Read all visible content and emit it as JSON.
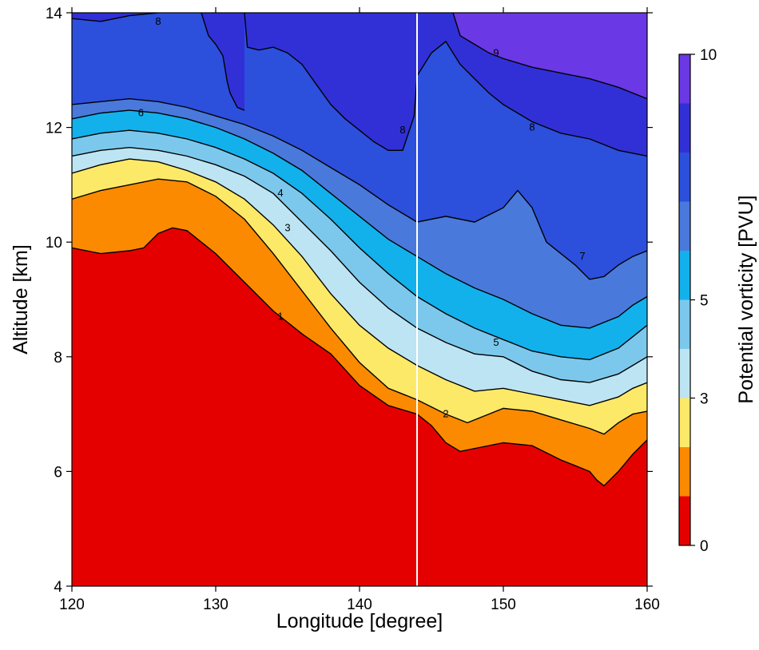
{
  "chart_data": {
    "type": "heatmap",
    "subtype": "filled-contour",
    "xlabel": "Longitude [degree]",
    "ylabel": "Altitude [km]",
    "xlim": [
      120,
      160
    ],
    "ylim": [
      4,
      14
    ],
    "xticks": [
      "120",
      "130",
      "140",
      "150",
      "160"
    ],
    "yticks": [
      "4",
      "6",
      "8",
      "10",
      "12",
      "14"
    ],
    "marker_line_x": 144,
    "colorbar": {
      "label": "Potential vorticity [PVU]",
      "ticks": [
        "0",
        "3",
        "5",
        "10"
      ],
      "tick_values": [
        0,
        3,
        5,
        10
      ],
      "range": [
        0,
        10
      ]
    },
    "levels": [
      {
        "range": [
          0,
          1
        ],
        "color": "#e50000"
      },
      {
        "range": [
          1,
          2
        ],
        "color": "#fb8a00"
      },
      {
        "range": [
          2,
          3
        ],
        "color": "#fde968"
      },
      {
        "range": [
          3,
          4
        ],
        "color": "#bde4f2"
      },
      {
        "range": [
          4,
          5
        ],
        "color": "#7cc8ec"
      },
      {
        "range": [
          5,
          6
        ],
        "color": "#12b1ec"
      },
      {
        "range": [
          6,
          7
        ],
        "color": "#4a79dc"
      },
      {
        "range": [
          7,
          8
        ],
        "color": "#2c4fdc"
      },
      {
        "range": [
          8,
          9
        ],
        "color": "#3130d6"
      },
      {
        "range": [
          9,
          10
        ],
        "color": "#6a38e4"
      }
    ],
    "contours": [
      {
        "level": 1,
        "label": "1",
        "points": [
          [
            120,
            9.9
          ],
          [
            122,
            9.8
          ],
          [
            124,
            9.85
          ],
          [
            125,
            9.9
          ],
          [
            126,
            10.15
          ],
          [
            127,
            10.25
          ],
          [
            128,
            10.2
          ],
          [
            130,
            9.8
          ],
          [
            132,
            9.3
          ],
          [
            134,
            8.8
          ],
          [
            136,
            8.4
          ],
          [
            138,
            8.05
          ],
          [
            140,
            7.5
          ],
          [
            142,
            7.15
          ],
          [
            144,
            7.0
          ],
          [
            145,
            6.8
          ],
          [
            146,
            6.5
          ],
          [
            147,
            6.35
          ],
          [
            150,
            6.5
          ],
          [
            152,
            6.45
          ],
          [
            154,
            6.2
          ],
          [
            155,
            6.1
          ],
          [
            156,
            6.0
          ],
          [
            156.5,
            5.85
          ],
          [
            157,
            5.75
          ],
          [
            158,
            6.0
          ],
          [
            159,
            6.3
          ],
          [
            160,
            6.55
          ]
        ],
        "label_at": [
          134.5,
          8.7
        ]
      },
      {
        "level": 2,
        "label": "2",
        "points": [
          [
            120,
            10.75
          ],
          [
            122,
            10.9
          ],
          [
            124,
            11.0
          ],
          [
            126,
            11.1
          ],
          [
            128,
            11.05
          ],
          [
            130,
            10.8
          ],
          [
            132,
            10.4
          ],
          [
            134,
            9.8
          ],
          [
            136,
            9.15
          ],
          [
            138,
            8.5
          ],
          [
            140,
            7.9
          ],
          [
            142,
            7.45
          ],
          [
            144,
            7.25
          ],
          [
            146,
            7.0
          ],
          [
            147.5,
            6.85
          ],
          [
            150,
            7.1
          ],
          [
            152,
            7.05
          ],
          [
            154,
            6.9
          ],
          [
            156,
            6.75
          ],
          [
            157,
            6.65
          ],
          [
            158,
            6.85
          ],
          [
            159,
            7.0
          ],
          [
            160,
            7.05
          ]
        ],
        "label_at": [
          146,
          7.0
        ]
      },
      {
        "level": 3,
        "label": "3",
        "points": [
          [
            120,
            11.2
          ],
          [
            122,
            11.35
          ],
          [
            124,
            11.45
          ],
          [
            126,
            11.4
          ],
          [
            128,
            11.25
          ],
          [
            130,
            11.05
          ],
          [
            132,
            10.75
          ],
          [
            134,
            10.3
          ],
          [
            136,
            9.75
          ],
          [
            138,
            9.1
          ],
          [
            140,
            8.55
          ],
          [
            142,
            8.15
          ],
          [
            144,
            7.85
          ],
          [
            146,
            7.6
          ],
          [
            148,
            7.4
          ],
          [
            150,
            7.45
          ],
          [
            152,
            7.35
          ],
          [
            154,
            7.25
          ],
          [
            156,
            7.15
          ],
          [
            158,
            7.3
          ],
          [
            159,
            7.45
          ],
          [
            160,
            7.55
          ]
        ],
        "label_at": [
          135,
          10.25
        ]
      },
      {
        "level": 4,
        "label": "4",
        "points": [
          [
            120,
            11.5
          ],
          [
            122,
            11.6
          ],
          [
            124,
            11.65
          ],
          [
            126,
            11.6
          ],
          [
            128,
            11.5
          ],
          [
            130,
            11.35
          ],
          [
            132,
            11.15
          ],
          [
            134,
            10.85
          ],
          [
            136,
            10.35
          ],
          [
            138,
            9.85
          ],
          [
            140,
            9.3
          ],
          [
            142,
            8.85
          ],
          [
            144,
            8.5
          ],
          [
            146,
            8.25
          ],
          [
            148,
            8.05
          ],
          [
            150,
            8.0
          ],
          [
            152,
            7.75
          ],
          [
            154,
            7.6
          ],
          [
            156,
            7.55
          ],
          [
            158,
            7.7
          ],
          [
            159,
            7.85
          ],
          [
            160,
            8.0
          ]
        ],
        "label_at": [
          134.5,
          10.85
        ]
      },
      {
        "level": 5,
        "label": "5",
        "points": [
          [
            120,
            11.8
          ],
          [
            122,
            11.9
          ],
          [
            124,
            11.95
          ],
          [
            126,
            11.9
          ],
          [
            128,
            11.8
          ],
          [
            130,
            11.65
          ],
          [
            132,
            11.45
          ],
          [
            134,
            11.2
          ],
          [
            136,
            10.85
          ],
          [
            138,
            10.4
          ],
          [
            140,
            9.9
          ],
          [
            142,
            9.45
          ],
          [
            144,
            9.05
          ],
          [
            146,
            8.75
          ],
          [
            148,
            8.5
          ],
          [
            150,
            8.3
          ],
          [
            152,
            8.1
          ],
          [
            154,
            8.0
          ],
          [
            156,
            7.95
          ],
          [
            158,
            8.15
          ],
          [
            159,
            8.35
          ],
          [
            160,
            8.55
          ]
        ],
        "label_at": [
          149.5,
          8.25
        ]
      },
      {
        "level": 6,
        "label": "6",
        "points": [
          [
            120,
            12.15
          ],
          [
            122,
            12.25
          ],
          [
            124,
            12.3
          ],
          [
            126,
            12.25
          ],
          [
            128,
            12.15
          ],
          [
            130,
            12.0
          ],
          [
            132,
            11.8
          ],
          [
            134,
            11.55
          ],
          [
            136,
            11.25
          ],
          [
            138,
            10.85
          ],
          [
            140,
            10.45
          ],
          [
            142,
            10.05
          ],
          [
            144,
            9.75
          ],
          [
            146,
            9.45
          ],
          [
            148,
            9.2
          ],
          [
            150,
            9.0
          ],
          [
            152,
            8.75
          ],
          [
            154,
            8.55
          ],
          [
            156,
            8.5
          ],
          [
            158,
            8.7
          ],
          [
            159,
            8.9
          ],
          [
            160,
            9.05
          ]
        ],
        "label_at": [
          124.8,
          12.25
        ]
      },
      {
        "level": 7,
        "label": "7",
        "points": [
          [
            120,
            12.4
          ],
          [
            122,
            12.45
          ],
          [
            124,
            12.5
          ],
          [
            126,
            12.45
          ],
          [
            128,
            12.35
          ],
          [
            130,
            12.2
          ],
          [
            132,
            12.05
          ],
          [
            134,
            11.85
          ],
          [
            136,
            11.6
          ],
          [
            138,
            11.3
          ],
          [
            140,
            11.0
          ],
          [
            142,
            10.65
          ],
          [
            144,
            10.35
          ],
          [
            146,
            10.45
          ],
          [
            148,
            10.35
          ],
          [
            150,
            10.6
          ],
          [
            151,
            10.9
          ],
          [
            152,
            10.6
          ],
          [
            153,
            10.0
          ],
          [
            154,
            9.8
          ],
          [
            155,
            9.6
          ],
          [
            156,
            9.35
          ],
          [
            157,
            9.4
          ],
          [
            158,
            9.6
          ],
          [
            159,
            9.75
          ],
          [
            160,
            9.85
          ]
        ],
        "label_at": [
          155.5,
          9.75
        ]
      },
      {
        "level": 8,
        "label": "8",
        "points": [
          [
            120,
            13.9
          ],
          [
            122,
            13.85
          ],
          [
            124,
            13.95
          ],
          [
            126,
            14.0
          ]
        ],
        "label_at": [
          126,
          13.85
        ]
      },
      {
        "level": 8,
        "label": "8",
        "points": [
          [
            132,
            14.0
          ],
          [
            132.2,
            13.4
          ],
          [
            133,
            13.35
          ],
          [
            134,
            13.4
          ],
          [
            135,
            13.3
          ],
          [
            136,
            13.1
          ],
          [
            137,
            12.75
          ],
          [
            138,
            12.4
          ],
          [
            139,
            12.15
          ],
          [
            140,
            11.95
          ],
          [
            141,
            11.75
          ],
          [
            142,
            11.6
          ],
          [
            143,
            11.6
          ],
          [
            143.8,
            12.2
          ],
          [
            144,
            12.9
          ],
          [
            145,
            13.3
          ],
          [
            146,
            13.5
          ],
          [
            147,
            13.1
          ],
          [
            148,
            12.85
          ],
          [
            149,
            12.6
          ],
          [
            150,
            12.4
          ],
          [
            152,
            12.1
          ],
          [
            154,
            11.9
          ],
          [
            156,
            11.8
          ],
          [
            158,
            11.6
          ],
          [
            160,
            11.5
          ]
        ],
        "label_at": [
          152,
          12.0
        ]
      },
      {
        "level": 8,
        "label": "8",
        "points": [
          [
            129,
            14.0
          ],
          [
            129.5,
            13.6
          ],
          [
            130,
            13.45
          ],
          [
            130.5,
            13.25
          ],
          [
            130.8,
            12.8
          ],
          [
            131,
            12.6
          ],
          [
            131.5,
            12.35
          ],
          [
            132,
            12.3
          ]
        ],
        "label_at": [
          143,
          11.95
        ]
      },
      {
        "level": 9,
        "label": "9",
        "points": [
          [
            146.5,
            14.0
          ],
          [
            147,
            13.6
          ],
          [
            148,
            13.45
          ],
          [
            149,
            13.3
          ],
          [
            150,
            13.2
          ],
          [
            152,
            13.05
          ],
          [
            154,
            12.95
          ],
          [
            156,
            12.85
          ],
          [
            158,
            12.7
          ],
          [
            160,
            12.5
          ]
        ],
        "label_at": [
          149.5,
          13.3
        ]
      }
    ]
  }
}
